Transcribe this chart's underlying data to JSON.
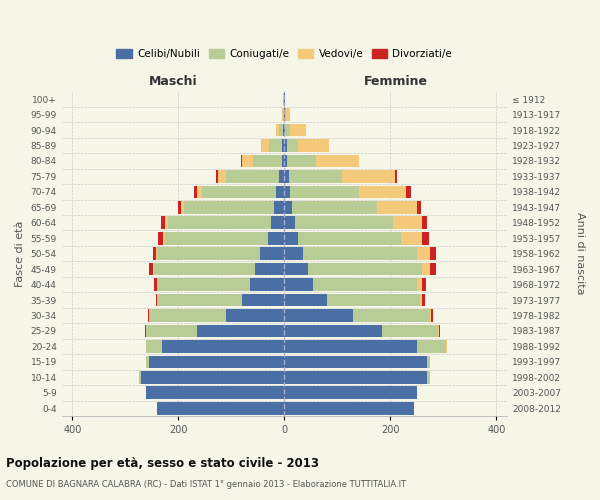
{
  "age_groups": [
    "0-4",
    "5-9",
    "10-14",
    "15-19",
    "20-24",
    "25-29",
    "30-34",
    "35-39",
    "40-44",
    "45-49",
    "50-54",
    "55-59",
    "60-64",
    "65-69",
    "70-74",
    "75-79",
    "80-84",
    "85-89",
    "90-94",
    "95-99",
    "100+"
  ],
  "birth_years": [
    "2008-2012",
    "2003-2007",
    "1998-2002",
    "1993-1997",
    "1988-1992",
    "1983-1987",
    "1978-1982",
    "1973-1977",
    "1968-1972",
    "1963-1967",
    "1958-1962",
    "1953-1957",
    "1948-1952",
    "1943-1947",
    "1938-1942",
    "1933-1937",
    "1928-1932",
    "1923-1927",
    "1918-1922",
    "1913-1917",
    "≤ 1912"
  ],
  "maschi": {
    "celibi": [
      240,
      260,
      270,
      255,
      230,
      165,
      110,
      80,
      65,
      55,
      45,
      30,
      25,
      20,
      15,
      10,
      5,
      4,
      2,
      1,
      1
    ],
    "coniugati": [
      0,
      0,
      5,
      5,
      30,
      95,
      145,
      160,
      175,
      190,
      195,
      195,
      195,
      170,
      140,
      100,
      55,
      25,
      8,
      2,
      1
    ],
    "vedovi": [
      0,
      0,
      0,
      0,
      0,
      0,
      0,
      0,
      1,
      2,
      2,
      3,
      5,
      5,
      10,
      15,
      20,
      15,
      5,
      1,
      0
    ],
    "divorziati": [
      0,
      0,
      0,
      0,
      1,
      2,
      2,
      3,
      5,
      8,
      5,
      10,
      8,
      5,
      5,
      3,
      2,
      0,
      0,
      0,
      0
    ]
  },
  "femmine": {
    "nubili": [
      245,
      250,
      270,
      270,
      250,
      185,
      130,
      80,
      55,
      45,
      35,
      25,
      20,
      15,
      10,
      8,
      5,
      5,
      2,
      1,
      1
    ],
    "coniugate": [
      0,
      0,
      5,
      5,
      55,
      105,
      145,
      175,
      195,
      215,
      215,
      195,
      185,
      160,
      130,
      100,
      55,
      20,
      8,
      2,
      0
    ],
    "vedove": [
      0,
      0,
      0,
      0,
      2,
      2,
      2,
      5,
      10,
      15,
      25,
      40,
      55,
      75,
      90,
      100,
      80,
      60,
      30,
      8,
      1
    ],
    "divorziate": [
      0,
      0,
      0,
      0,
      0,
      2,
      3,
      5,
      8,
      12,
      12,
      12,
      10,
      8,
      8,
      5,
      1,
      0,
      0,
      0,
      0
    ]
  },
  "colors": {
    "celibi": "#4a6fa5",
    "coniugati": "#b8cc96",
    "vedovi": "#f5c97a",
    "divorziati": "#cc2222"
  },
  "title": "Popolazione per età, sesso e stato civile - 2013",
  "subtitle": "COMUNE DI BAGNARA CALABRA (RC) - Dati ISTAT 1° gennaio 2013 - Elaborazione TUTTITALIA.IT",
  "xlabel_left": "Maschi",
  "xlabel_right": "Femmine",
  "ylabel_left": "Fasce di età",
  "ylabel_right": "Anni di nascita",
  "legend_labels": [
    "Celibi/Nubili",
    "Coniugati/e",
    "Vedovi/e",
    "Divorziati/e"
  ],
  "background_color": "#f5f5e8",
  "grid_color": "#cccccc"
}
